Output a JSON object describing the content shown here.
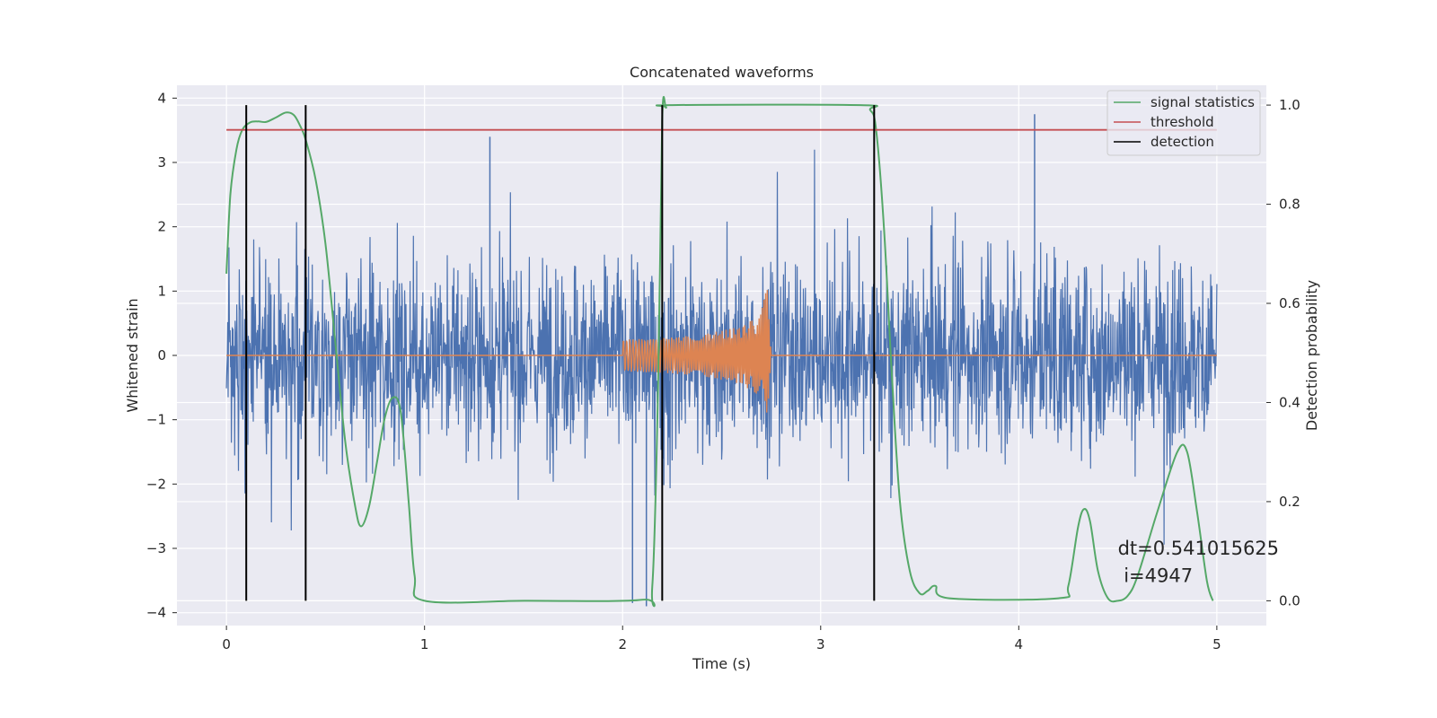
{
  "chart_data": {
    "type": "line",
    "title": "Concatenated waveforms",
    "xlabel": "Time (s)",
    "ylabel": "Whitened strain",
    "ylabel_right": "Detection probability",
    "xlim": [
      -0.25,
      5.25
    ],
    "ylim": [
      -4.2,
      4.2
    ],
    "ylim_right": [
      -0.05,
      1.04
    ],
    "x_ticks": [
      0,
      1,
      2,
      3,
      4,
      5
    ],
    "x_tick_labels": [
      "0",
      "1",
      "2",
      "3",
      "4",
      "5"
    ],
    "y_ticks": [
      -4,
      -3,
      -2,
      -1,
      0,
      1,
      2,
      3,
      4
    ],
    "y_tick_labels": [
      "−4",
      "−3",
      "−2",
      "−1",
      "0",
      "1",
      "2",
      "3",
      "4"
    ],
    "y2_ticks": [
      0.0,
      0.2,
      0.4,
      0.6,
      0.8,
      1.0
    ],
    "y2_tick_labels": [
      "0.0",
      "0.2",
      "0.4",
      "0.6",
      "0.8",
      "1.0"
    ],
    "grid": true,
    "legend_position": "top-right",
    "background": "#eaeaf2",
    "annotation": [
      "dt=0.541015625",
      "i=4947"
    ],
    "series": [
      {
        "name": "",
        "role": "whitened-strain-noise",
        "color": "#4c72b0",
        "x_range": [
          0,
          5
        ],
        "amplitude_typical": 1.0,
        "extreme_peaks": [
          {
            "x": 1.33,
            "y": 3.4
          },
          {
            "x": 4.08,
            "y": 3.75
          },
          {
            "x": 2.05,
            "y": -3.85
          },
          {
            "x": 2.12,
            "y": -3.9
          }
        ]
      },
      {
        "name": "",
        "role": "injected-chirp",
        "color": "#dd8452",
        "x": [
          0,
          2.0,
          2.2,
          2.4,
          2.6,
          2.7,
          2.73,
          2.75,
          5.0
        ],
        "envelope": [
          0,
          0.25,
          0.27,
          0.32,
          0.45,
          0.65,
          1.15,
          0,
          0
        ]
      },
      {
        "name": "signal statistics",
        "color": "#55a868",
        "axis": "right",
        "x": [
          0.0,
          0.02,
          0.05,
          0.08,
          0.12,
          0.16,
          0.2,
          0.25,
          0.3,
          0.34,
          0.37,
          0.4,
          0.45,
          0.5,
          0.55,
          0.6,
          0.65,
          0.68,
          0.72,
          0.76,
          0.8,
          0.84,
          0.88,
          0.92,
          0.95,
          1.0,
          1.5,
          2.1,
          2.15,
          2.18,
          2.2,
          2.22,
          2.25,
          3.2,
          3.25,
          3.28,
          3.32,
          3.36,
          3.4,
          3.45,
          3.5,
          3.54,
          3.58,
          3.65,
          4.2,
          4.25,
          4.3,
          4.33,
          4.36,
          4.4,
          4.45,
          4.5,
          4.55,
          4.6,
          4.7,
          4.8,
          4.85,
          4.9,
          4.95,
          4.98
        ],
        "y": [
          0.66,
          0.82,
          0.91,
          0.95,
          0.965,
          0.967,
          0.966,
          0.975,
          0.985,
          0.98,
          0.96,
          0.93,
          0.85,
          0.72,
          0.52,
          0.32,
          0.19,
          0.15,
          0.19,
          0.28,
          0.37,
          0.41,
          0.38,
          0.2,
          0.05,
          0.0,
          0.0,
          0.002,
          0.03,
          0.45,
          0.97,
          0.995,
          1.0,
          1.0,
          0.99,
          0.95,
          0.75,
          0.45,
          0.2,
          0.06,
          0.015,
          0.02,
          0.03,
          0.005,
          0.005,
          0.03,
          0.15,
          0.185,
          0.16,
          0.06,
          0.005,
          0.0,
          0.01,
          0.05,
          0.18,
          0.3,
          0.3,
          0.18,
          0.04,
          0.0
        ]
      },
      {
        "name": "threshold",
        "color": "#c44e52",
        "axis": "right",
        "x": [
          0,
          5
        ],
        "y": [
          0.95,
          0.95
        ]
      },
      {
        "name": "detection",
        "color": "#000000",
        "axis": "right",
        "type": "vlines",
        "x": [
          0.1,
          0.4,
          2.2,
          3.27
        ],
        "ymin": 0.0,
        "ymax": 1.0
      }
    ]
  }
}
